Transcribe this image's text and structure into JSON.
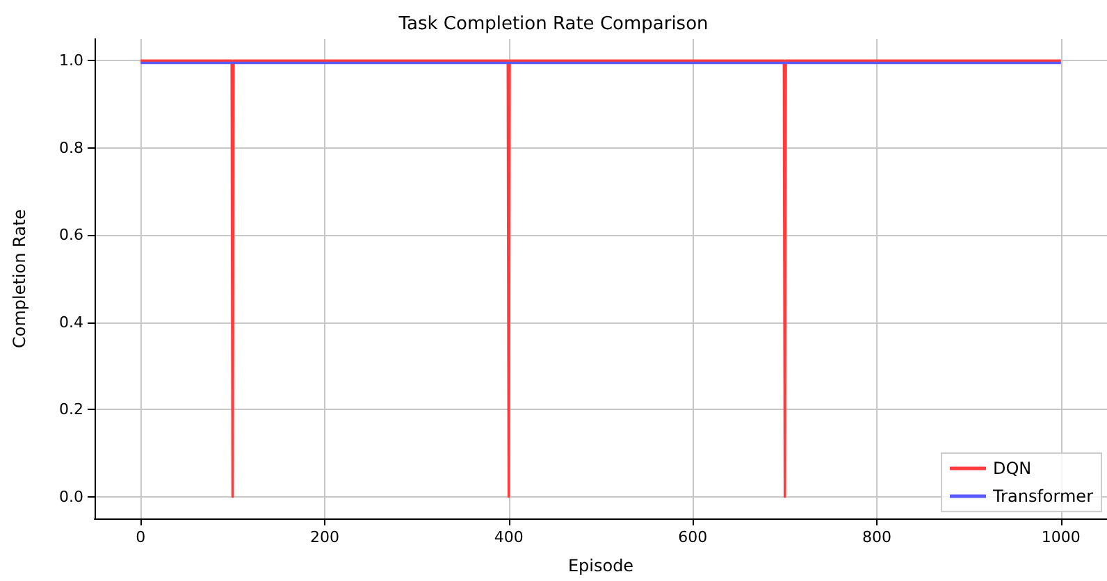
{
  "chart_data": {
    "type": "line",
    "title": "Task Completion Rate Comparison",
    "xlabel": "Episode",
    "ylabel": "Completion Rate",
    "series": [
      {
        "name": "DQN",
        "color": "#ff3b3b",
        "x": [
          0,
          99,
          100,
          101,
          399,
          400,
          401,
          699,
          700,
          701,
          1000
        ],
        "values": [
          1,
          1,
          0,
          1,
          1,
          0,
          1,
          1,
          0,
          1,
          1
        ]
      },
      {
        "name": "Transformer",
        "color": "#5a5aff",
        "x": [
          0,
          250,
          500,
          750,
          1000
        ],
        "values": [
          0.995,
          0.995,
          0.995,
          0.995,
          0.995
        ]
      }
    ],
    "xlim": [
      -50,
      1050
    ],
    "xticks": [
      0,
      200,
      400,
      600,
      800,
      1000
    ],
    "ylim": [
      -0.05,
      1.05
    ],
    "yticks": [
      {
        "value": 0,
        "label": "0.0"
      },
      {
        "value": 0.2,
        "label": "0.2"
      },
      {
        "value": 0.4,
        "label": "0.4"
      },
      {
        "value": 0.6,
        "label": "0.6"
      },
      {
        "value": 0.8,
        "label": "0.8"
      },
      {
        "value": 1,
        "label": "1.0"
      }
    ],
    "grid": true,
    "legend": "bottom right",
    "marker": "none",
    "line_style": "solid"
  }
}
